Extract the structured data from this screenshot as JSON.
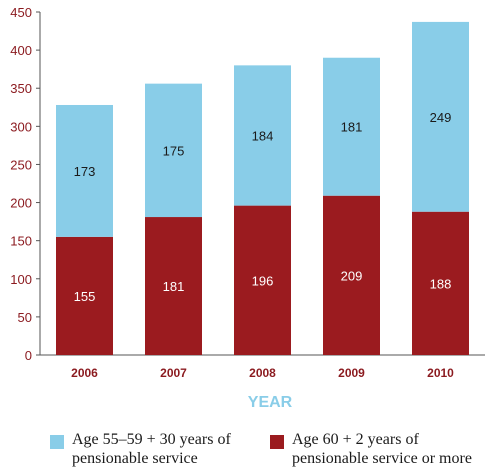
{
  "chart_data": {
    "type": "bar",
    "stacked": true,
    "categories": [
      "2006",
      "2007",
      "2008",
      "2009",
      "2010"
    ],
    "series": [
      {
        "name": "Age 60 + 2 years of pensionable service or more",
        "values": [
          155,
          181,
          196,
          209,
          188
        ],
        "color": "#9b1b1f"
      },
      {
        "name": "Age 55–59 + 30 years of pensionable service",
        "values": [
          173,
          175,
          184,
          181,
          249
        ],
        "color": "#89cde8"
      }
    ],
    "xlabel": "YEAR",
    "ylabel": "",
    "ylim": [
      0,
      450
    ],
    "yticks": [
      0,
      50,
      100,
      150,
      200,
      250,
      300,
      350,
      400,
      450
    ],
    "grid": false,
    "legend_position": "bottom"
  },
  "legend": {
    "items": [
      {
        "line1": "Age 55–59 + 30 years of",
        "line2": "pensionable service",
        "color": "#89cde8"
      },
      {
        "line1": "Age 60 + 2 years of",
        "line2": "pensionable service or more",
        "color": "#9b1b1f"
      }
    ]
  }
}
